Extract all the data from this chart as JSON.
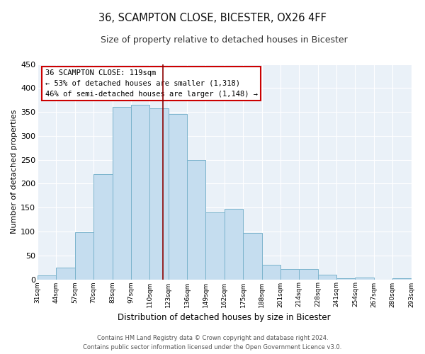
{
  "title": "36, SCAMPTON CLOSE, BICESTER, OX26 4FF",
  "subtitle": "Size of property relative to detached houses in Bicester",
  "xlabel": "Distribution of detached houses by size in Bicester",
  "ylabel": "Number of detached properties",
  "bin_labels": [
    "31sqm",
    "44sqm",
    "57sqm",
    "70sqm",
    "83sqm",
    "97sqm",
    "110sqm",
    "123sqm",
    "136sqm",
    "149sqm",
    "162sqm",
    "175sqm",
    "188sqm",
    "201sqm",
    "214sqm",
    "228sqm",
    "241sqm",
    "254sqm",
    "267sqm",
    "280sqm",
    "293sqm"
  ],
  "bar_heights": [
    8,
    25,
    98,
    220,
    360,
    365,
    358,
    345,
    250,
    140,
    148,
    97,
    30,
    22,
    22,
    10,
    2,
    3,
    0,
    2
  ],
  "bar_color": "#c5ddef",
  "bar_edge_color": "#7ab3cc",
  "vline_color": "#8b0000",
  "ylim": [
    0,
    450
  ],
  "yticks": [
    0,
    50,
    100,
    150,
    200,
    250,
    300,
    350,
    400,
    450
  ],
  "annotation_title": "36 SCAMPTON CLOSE: 119sqm",
  "annotation_line1": "← 53% of detached houses are smaller (1,318)",
  "annotation_line2": "46% of semi-detached houses are larger (1,148) →",
  "annotation_box_color": "#ffffff",
  "annotation_border_color": "#cc0000",
  "footer_line1": "Contains HM Land Registry data © Crown copyright and database right 2024.",
  "footer_line2": "Contains public sector information licensed under the Open Government Licence v3.0.",
  "bg_color": "#eaf1f8"
}
